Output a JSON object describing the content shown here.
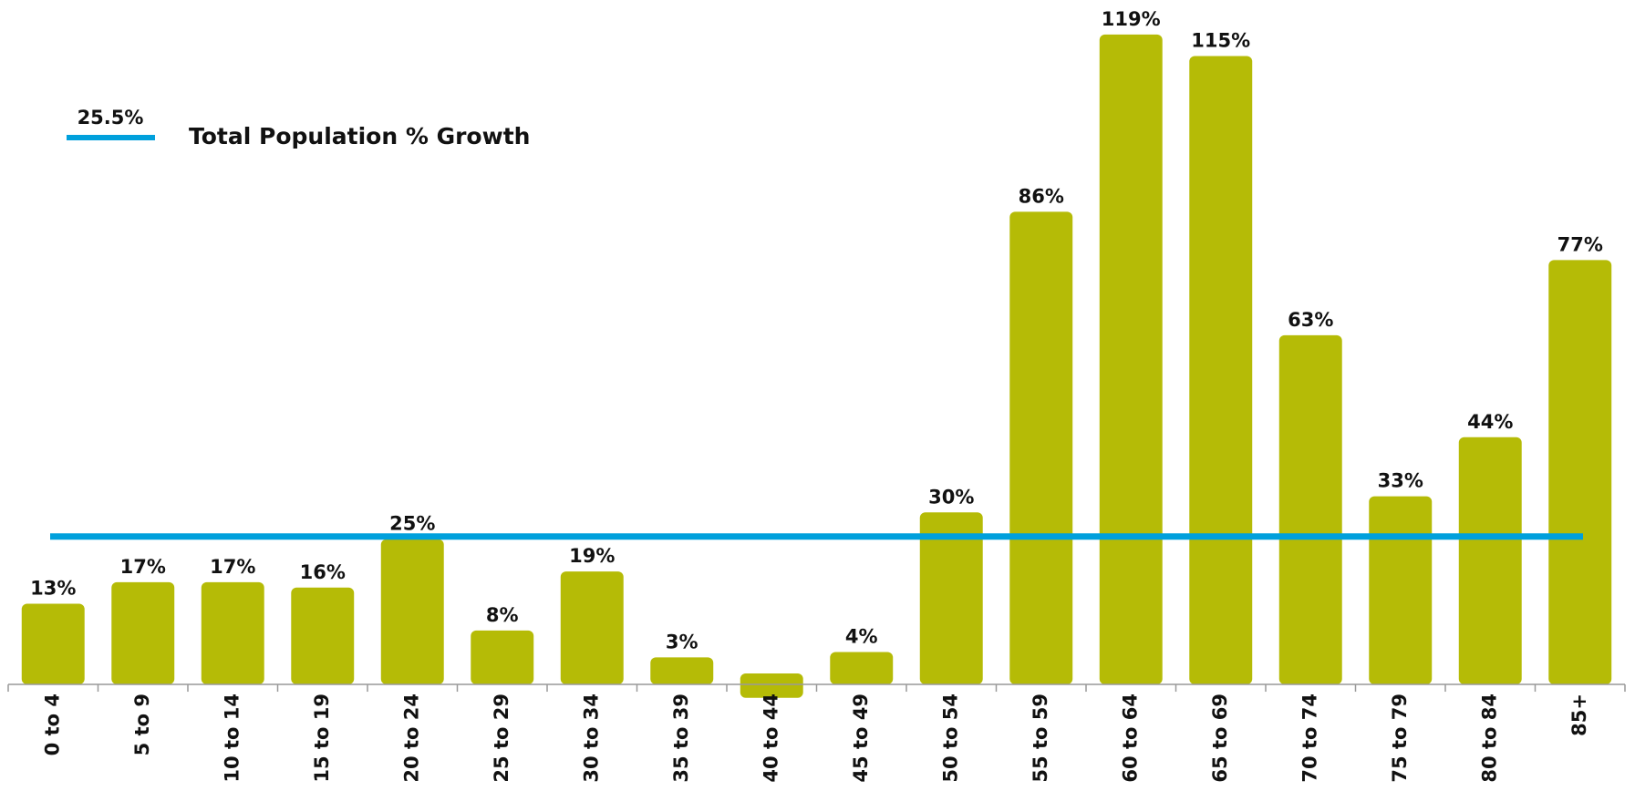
{
  "chart_data": {
    "type": "bar",
    "categories": [
      "0 to 4",
      "5 to 9",
      "10 to 14",
      "15 to 19",
      "20 to 24",
      "25 to 29",
      "30 to 34",
      "35 to 39",
      "40 to 44",
      "45 to 49",
      "50 to 54",
      "55 to 59",
      "60 to 64",
      "65 to 69",
      "70 to 74",
      "75 to 79",
      "80 to 84",
      "85+"
    ],
    "values": [
      13,
      17,
      17,
      16,
      25,
      8,
      19,
      3,
      -2.5,
      4,
      30,
      86,
      119,
      115,
      63,
      33,
      44,
      77
    ],
    "value_labels": [
      "13%",
      "17%",
      "17%",
      "16%",
      "25%",
      "8%",
      "19%",
      "3%",
      null,
      "4%",
      "30%",
      "86%",
      "119%",
      "115%",
      "63%",
      "33%",
      "44%",
      "77%"
    ],
    "color": "#b5bb06",
    "ylim": [
      -5,
      120
    ],
    "reference_line": {
      "name": "Total Population % Growth",
      "value": 25.5,
      "label": "25.5%",
      "color": "#00a0dc"
    }
  }
}
